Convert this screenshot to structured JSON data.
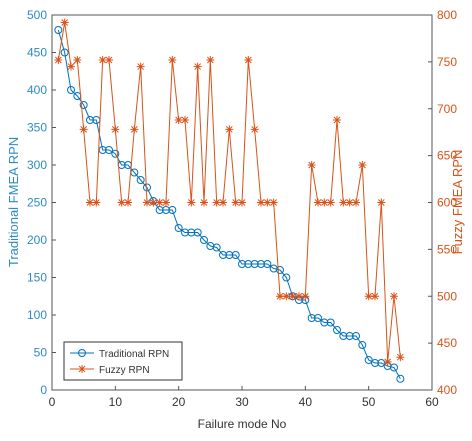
{
  "chart_data": {
    "type": "line",
    "x": [
      1,
      2,
      3,
      4,
      5,
      6,
      7,
      8,
      9,
      10,
      11,
      12,
      13,
      14,
      15,
      16,
      17,
      18,
      19,
      20,
      21,
      22,
      23,
      24,
      25,
      26,
      27,
      28,
      29,
      30,
      31,
      32,
      33,
      34,
      35,
      36,
      37,
      38,
      39,
      40,
      41,
      42,
      43,
      44,
      45,
      46,
      47,
      48,
      49,
      50,
      51,
      52,
      53,
      54,
      55
    ],
    "xlabel": "Failure mode No",
    "ylabel": "Traditional FMEA RPN",
    "y2label": "Fuzzy FMEA RPN",
    "xlim": [
      0,
      60
    ],
    "xticks": [
      0,
      10,
      20,
      30,
      40,
      50,
      60
    ],
    "ylim": [
      0,
      500
    ],
    "yticks": [
      0,
      50,
      100,
      150,
      200,
      250,
      300,
      350,
      400,
      450,
      500
    ],
    "y2lim": [
      400,
      800
    ],
    "y2ticks": [
      400,
      450,
      500,
      550,
      600,
      650,
      700,
      750,
      800
    ],
    "legend": "lower left",
    "series": [
      {
        "name": "Traditional RPN",
        "color": "#0072bd",
        "marker": "circle",
        "values": [
          480,
          450,
          400,
          392,
          380,
          360,
          360,
          320,
          320,
          315,
          300,
          300,
          290,
          280,
          270,
          252,
          240,
          240,
          240,
          216,
          210,
          210,
          210,
          200,
          192,
          190,
          180,
          180,
          180,
          168,
          168,
          168,
          168,
          168,
          162,
          160,
          150,
          125,
          120,
          120,
          96,
          96,
          90,
          90,
          80,
          72,
          72,
          72,
          60,
          40,
          36,
          36,
          32,
          30,
          15
        ]
      },
      {
        "name": "Fuzzy RPN",
        "color": "#d95319",
        "marker": "star",
        "axis": "y2",
        "values": [
          752,
          792,
          745,
          752,
          678,
          600,
          600,
          752,
          752,
          678,
          600,
          600,
          678,
          745,
          600,
          600,
          600,
          600,
          752,
          688,
          688,
          600,
          745,
          600,
          752,
          600,
          600,
          678,
          600,
          600,
          752,
          678,
          600,
          600,
          600,
          500,
          500,
          500,
          500,
          500,
          640,
          600,
          600,
          600,
          688,
          600,
          600,
          600,
          640,
          500,
          500,
          600,
          430,
          500,
          435
        ]
      }
    ]
  }
}
